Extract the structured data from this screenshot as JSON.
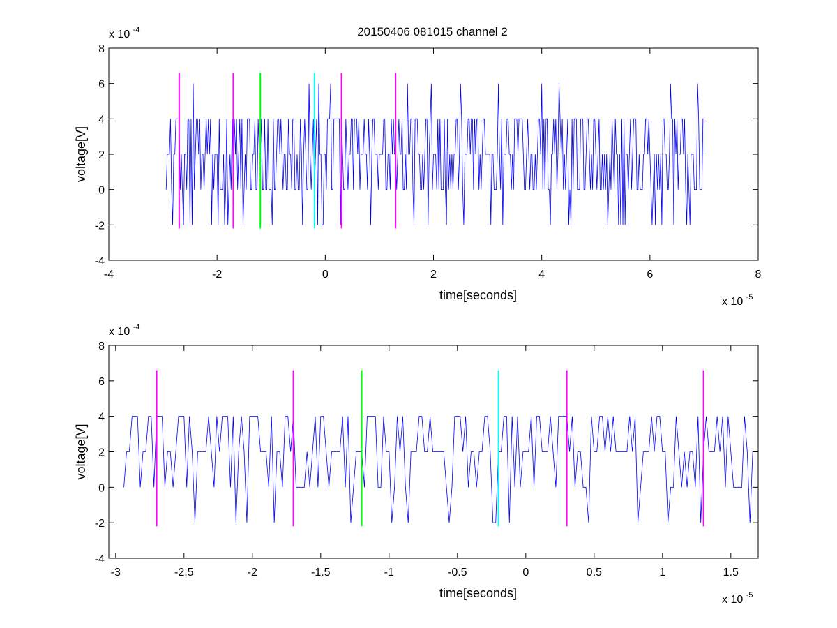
{
  "title": "20150406 081015 channel 2",
  "colors": {
    "signal": "#0000ff",
    "marker_magenta": "#ff00ff",
    "marker_green": "#00ff00",
    "marker_cyan": "#00ffff",
    "axes": "#000000",
    "background": "#ffffff"
  },
  "chart_data": [
    {
      "type": "line",
      "title": "20150406 081015 channel 2",
      "xlabel": "time[seconds]",
      "ylabel": "voltage[V]",
      "x_exponent_label": "x 10",
      "x_exponent": "-5",
      "y_exponent_label": "x 10",
      "y_exponent": "-4",
      "xlim": [
        -4,
        8
      ],
      "ylim": [
        -4,
        8
      ],
      "x_ticks": [
        -4,
        -2,
        0,
        2,
        4,
        6,
        8
      ],
      "x_tick_labels": [
        "-4",
        "-2",
        "0",
        "2",
        "4",
        "6",
        "8"
      ],
      "y_ticks": [
        -4,
        -2,
        0,
        2,
        4,
        6,
        8
      ],
      "y_tick_labels": [
        "-4",
        "-2",
        "0",
        "2",
        "4",
        "6",
        "8"
      ],
      "grid": false,
      "signal_range_x": [
        -2.94,
        7.0
      ],
      "signal_step_x": 0.02,
      "signal_levels": [
        -2,
        0,
        2,
        4,
        6
      ],
      "series": [
        {
          "color": "#0000ff",
          "x": [
            -2.94,
            -2.9,
            -2.8,
            -2.7,
            -2.6,
            -2.4,
            -2.2,
            -2.0,
            -1.8,
            -1.6,
            -1.4,
            -1.2,
            -1.0,
            -0.8,
            -0.6,
            -0.4,
            -0.2,
            0.0,
            0.2,
            0.4,
            0.6,
            0.8,
            1.0,
            1.2,
            1.4,
            1.6,
            1.8,
            2.0,
            2.2,
            2.4,
            2.5,
            2.6,
            2.8,
            3.0,
            3.2,
            3.4,
            3.6,
            3.8,
            4.0,
            4.2,
            4.4,
            4.6,
            4.8,
            5.0,
            5.2,
            5.4,
            5.6,
            5.8,
            6.0,
            6.2,
            6.3,
            6.4,
            6.6,
            6.8,
            7.0
          ],
          "y": [
            0,
            2,
            2,
            4,
            2,
            2,
            4,
            2,
            -2,
            2,
            4,
            2,
            0,
            2,
            4,
            2,
            0,
            2,
            4,
            2,
            2,
            4,
            2,
            0,
            2,
            4,
            2,
            2,
            4,
            2,
            6,
            2,
            4,
            2,
            6,
            2,
            4,
            2,
            6,
            2,
            4,
            2,
            2,
            4,
            2,
            2,
            4,
            2,
            2,
            4,
            6,
            2,
            4,
            2,
            2
          ]
        }
      ],
      "markers": [
        {
          "x": -2.7,
          "color": "#ff00ff",
          "ymin": -2.2,
          "ymax": 6.6
        },
        {
          "x": -1.7,
          "color": "#ff00ff",
          "ymin": -2.2,
          "ymax": 6.6
        },
        {
          "x": -1.2,
          "color": "#00ff00",
          "ymin": -2.2,
          "ymax": 6.6
        },
        {
          "x": -0.2,
          "color": "#00ffff",
          "ymin": -2.2,
          "ymax": 6.6
        },
        {
          "x": 0.3,
          "color": "#ff00ff",
          "ymin": -2.2,
          "ymax": 6.6
        },
        {
          "x": 1.3,
          "color": "#ff00ff",
          "ymin": -2.2,
          "ymax": 6.6
        }
      ]
    },
    {
      "type": "line",
      "title": "",
      "xlabel": "time[seconds]",
      "ylabel": "voltage[V]",
      "x_exponent_label": "x 10",
      "x_exponent": "-5",
      "y_exponent_label": "x 10",
      "y_exponent": "-4",
      "xlim": [
        -3.05,
        1.7
      ],
      "ylim": [
        -4,
        8
      ],
      "x_ticks": [
        -3,
        -2.5,
        -2,
        -1.5,
        -1,
        -0.5,
        0,
        0.5,
        1,
        1.5
      ],
      "x_tick_labels": [
        "-3",
        "-2.5",
        "-2",
        "-1.5",
        "-1",
        "-0.5",
        "0",
        "0.5",
        "1",
        "1.5"
      ],
      "y_ticks": [
        -4,
        -2,
        0,
        2,
        4,
        6,
        8
      ],
      "y_tick_labels": [
        "-4",
        "-2",
        "0",
        "2",
        "4",
        "6",
        "8"
      ],
      "grid": false,
      "signal_range_x": [
        -2.94,
        1.7
      ],
      "signal_step_x": 0.02,
      "signal_levels": [
        -2,
        0,
        2,
        4
      ],
      "series": [
        {
          "color": "#0000ff",
          "x": [
            -2.94,
            -2.9,
            -2.8,
            -2.7,
            -2.6,
            -2.5,
            -2.4,
            -2.3,
            -2.2,
            -2.1,
            -2.0,
            -1.9,
            -1.84,
            -1.8,
            -1.7,
            -1.6,
            -1.5,
            -1.4,
            -1.3,
            -1.2,
            -1.1,
            -1.0,
            -0.98,
            -0.9,
            -0.8,
            -0.7,
            -0.6,
            -0.5,
            -0.4,
            -0.3,
            -0.2,
            -0.1,
            0.0,
            0.1,
            0.2,
            0.3,
            0.4,
            0.46,
            0.5,
            0.6,
            0.7,
            0.8,
            0.9,
            1.0,
            1.1,
            1.2,
            1.28,
            1.3,
            1.4,
            1.5,
            1.6,
            1.64,
            1.7
          ],
          "y": [
            0,
            2,
            2,
            4,
            2,
            4,
            2,
            2,
            4,
            2,
            4,
            2,
            -2,
            2,
            4,
            2,
            4,
            2,
            4,
            2,
            4,
            2,
            -2,
            4,
            2,
            4,
            2,
            4,
            2,
            4,
            2,
            4,
            2,
            4,
            2,
            4,
            2,
            -2,
            2,
            4,
            2,
            4,
            2,
            2,
            4,
            2,
            -2,
            2,
            4,
            2,
            4,
            -2,
            2
          ]
        }
      ],
      "markers": [
        {
          "x": -2.7,
          "color": "#ff00ff",
          "ymin": -2.2,
          "ymax": 6.6
        },
        {
          "x": -1.7,
          "color": "#ff00ff",
          "ymin": -2.2,
          "ymax": 6.6
        },
        {
          "x": -1.2,
          "color": "#00ff00",
          "ymin": -2.2,
          "ymax": 6.6
        },
        {
          "x": -0.2,
          "color": "#00ffff",
          "ymin": -2.2,
          "ymax": 6.6
        },
        {
          "x": 0.3,
          "color": "#ff00ff",
          "ymin": -2.2,
          "ymax": 6.6
        },
        {
          "x": 1.3,
          "color": "#ff00ff",
          "ymin": -2.2,
          "ymax": 6.6
        }
      ]
    }
  ]
}
